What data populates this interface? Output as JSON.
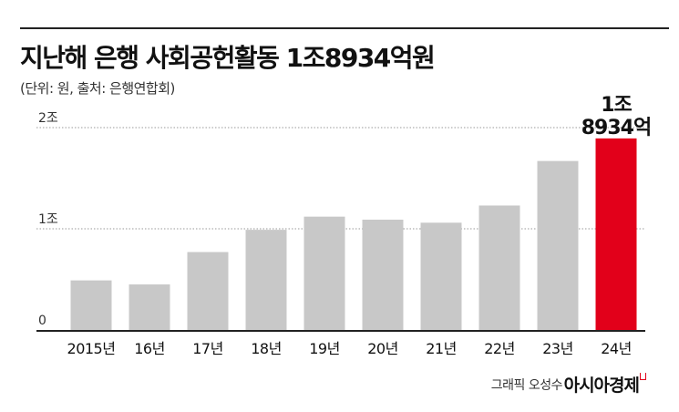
{
  "header": {
    "title": "지난해 은행 사회공헌활동 1조8934억원",
    "subtitle": "(단위: 원, 출처: 은행연합회)"
  },
  "footer": {
    "credit": "그래픽 오성수",
    "brand": "아시아경제"
  },
  "colors": {
    "bar": "#c8c8c8",
    "highlight": "#e2001a",
    "grid": "#999999",
    "axis": "#222222"
  },
  "chart_data": {
    "type": "bar",
    "categories": [
      "2015년",
      "16년",
      "17년",
      "18년",
      "19년",
      "20년",
      "21년",
      "22년",
      "23년",
      "24년"
    ],
    "values": [
      4900,
      4500,
      7700,
      9900,
      11200,
      10900,
      10600,
      12300,
      16700,
      18934
    ],
    "unit": "억원",
    "ylim": [
      0,
      20000
    ],
    "yticks": [
      {
        "value": 0,
        "label": "0"
      },
      {
        "value": 10000,
        "label": "1조"
      },
      {
        "value": 20000,
        "label": "2조"
      }
    ],
    "grid": true,
    "highlight_index": 9,
    "annotation": {
      "lines": [
        "1조",
        "8934억"
      ],
      "index": 9
    }
  }
}
